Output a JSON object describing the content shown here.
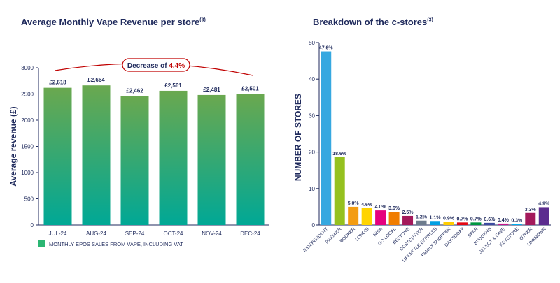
{
  "left_chart": {
    "title": "Average Monthly Vape Revenue per store",
    "title_note": "(3)",
    "chart_data": {
      "type": "bar",
      "categories": [
        "JUL-24",
        "AUG-24",
        "SEP-24",
        "OCT-24",
        "NOV-24",
        "DEC-24"
      ],
      "values": [
        2618,
        2664,
        2462,
        2561,
        2481,
        2501
      ],
      "value_labels": [
        "£2,618",
        "£2,664",
        "£2,462",
        "£2,561",
        "£2,481",
        "£2,501"
      ],
      "ylabel": "Average revenue (£)",
      "xlabel": "",
      "ylim": [
        0,
        3000
      ],
      "yticks": [
        0,
        500,
        1000,
        1500,
        2000,
        2500,
        3000
      ],
      "legend": "MONTHLY EPOS SALES FROM VAPE, INCLUDING VAT",
      "legend_placement": "bottom-left",
      "annotation_prefix": "Decrease of ",
      "annotation_value": "4.4%",
      "colors": {
        "bar_top": "#6aa84f",
        "bar_bottom": "#00a896",
        "legend": "#2bb673",
        "annotation": "#c00000"
      }
    }
  },
  "right_chart": {
    "title": "Breakdown of the c-stores",
    "title_note": "(3)",
    "chart_data": {
      "type": "bar",
      "categories": [
        "INDEPENDENT",
        "PREMIER",
        "BOOKER",
        "LONDIS",
        "NISA",
        "GO LOCAL",
        "BESTONE",
        "COSTCUTTER",
        "LIFESTYLE EXPRESS",
        "FAMILY SHOPPER",
        "DAY-TODAY",
        "SPAR",
        "BUDGENS",
        "SELECT & SAVE",
        "KEYSTORE",
        "OTHER",
        "UNKNOWN"
      ],
      "values": [
        47.6,
        18.6,
        5.0,
        4.6,
        4.0,
        3.6,
        2.5,
        1.2,
        1.1,
        0.9,
        0.7,
        0.7,
        0.6,
        0.4,
        0.3,
        3.3,
        4.9
      ],
      "value_labels": [
        "47.6%",
        "18.6%",
        "5.0%",
        "4.6%",
        "4.0%",
        "3.6%",
        "2.5%",
        "1.2%",
        "1.1%",
        "0.9%",
        "0.7%",
        "0.7%",
        "0.6%",
        "0.4%",
        "0.3%",
        "3.3%",
        "4.9%"
      ],
      "colors": [
        "#35a8e0",
        "#95c11f",
        "#f39c12",
        "#ffd400",
        "#e5007e",
        "#f07d00",
        "#a3195b",
        "#6d7b8d",
        "#00a0e3",
        "#ffcc00",
        "#e30613",
        "#009640",
        "#3b4ba0",
        "#c6168d",
        "#00aeef",
        "#a3195b",
        "#5b2c8f"
      ],
      "ylabel": "NUMBER OF STORES",
      "xlabel": "",
      "ylim": [
        0,
        50
      ],
      "yticks": [
        0,
        10,
        20,
        30,
        40,
        50
      ]
    }
  }
}
